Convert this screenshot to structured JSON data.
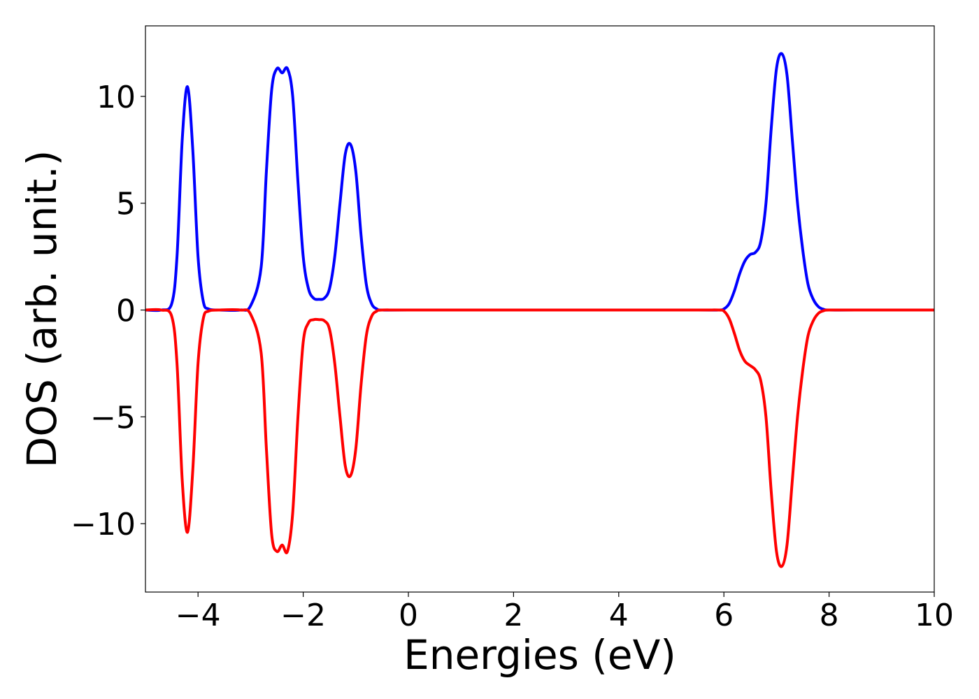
{
  "chart_data": {
    "type": "line",
    "xlabel": "Energies (eV)",
    "ylabel": "DOS (arb. unit.)",
    "xlim": [
      -5,
      10
    ],
    "ylim": [
      -13.2,
      13.3
    ],
    "xticks": [
      -4,
      -2,
      0,
      2,
      4,
      6,
      8,
      10
    ],
    "yticks": [
      -10,
      -5,
      0,
      5,
      10
    ],
    "xtick_labels": [
      "−4",
      "−2",
      "0",
      "2",
      "4",
      "6",
      "8",
      "10"
    ],
    "ytick_labels": [
      "−10",
      "−5",
      "0",
      "5",
      "10"
    ],
    "grid": false,
    "legend": false,
    "series": [
      {
        "color": "#0000ff",
        "x": [
          -5.0,
          -4.7,
          -4.5,
          -4.4,
          -4.3,
          -4.2,
          -4.1,
          -4.0,
          -3.9,
          -3.8,
          -3.6,
          -3.2,
          -3.0,
          -2.8,
          -2.7,
          -2.6,
          -2.5,
          -2.4,
          -2.3,
          -2.2,
          -2.1,
          -2.0,
          -1.9,
          -1.8,
          -1.7,
          -1.6,
          -1.5,
          -1.4,
          -1.3,
          -1.2,
          -1.1,
          -1.0,
          -0.9,
          -0.8,
          -0.7,
          -0.6,
          -0.5,
          0.0,
          2.0,
          4.0,
          5.5,
          5.9,
          6.0,
          6.1,
          6.2,
          6.3,
          6.4,
          6.5,
          6.6,
          6.7,
          6.8,
          6.9,
          7.0,
          7.1,
          7.2,
          7.3,
          7.4,
          7.5,
          7.6,
          7.7,
          7.8,
          7.9,
          8.0,
          8.5,
          10.0
        ],
        "y": [
          0.0,
          0.0,
          0.3,
          2.5,
          8.0,
          10.45,
          7.5,
          2.5,
          0.4,
          0.05,
          0.0,
          0.0,
          0.2,
          2.0,
          6.5,
          10.3,
          11.3,
          11.1,
          11.3,
          10.0,
          6.0,
          2.5,
          1.0,
          0.55,
          0.5,
          0.55,
          1.0,
          2.5,
          5.0,
          7.3,
          7.75,
          6.5,
          3.5,
          1.2,
          0.3,
          0.05,
          0.0,
          0.0,
          0.0,
          0.0,
          0.0,
          0.0,
          0.05,
          0.3,
          0.9,
          1.7,
          2.3,
          2.6,
          2.7,
          3.2,
          5.0,
          8.5,
          11.3,
          12.0,
          11.0,
          8.0,
          5.0,
          2.8,
          1.2,
          0.5,
          0.15,
          0.03,
          0.0,
          0.0,
          0.0
        ]
      },
      {
        "color": "#ff0000",
        "x": [
          -5.0,
          -4.7,
          -4.5,
          -4.4,
          -4.3,
          -4.2,
          -4.1,
          -4.0,
          -3.9,
          -3.8,
          -3.6,
          -3.2,
          -3.0,
          -2.8,
          -2.7,
          -2.6,
          -2.5,
          -2.4,
          -2.3,
          -2.2,
          -2.1,
          -2.0,
          -1.9,
          -1.8,
          -1.7,
          -1.6,
          -1.5,
          -1.4,
          -1.3,
          -1.2,
          -1.1,
          -1.0,
          -0.9,
          -0.8,
          -0.7,
          -0.6,
          -0.5,
          0.0,
          2.0,
          4.0,
          5.5,
          5.9,
          6.0,
          6.1,
          6.2,
          6.3,
          6.4,
          6.5,
          6.6,
          6.7,
          6.8,
          6.9,
          7.0,
          7.1,
          7.2,
          7.3,
          7.4,
          7.5,
          7.6,
          7.7,
          7.8,
          7.9,
          8.0,
          8.5,
          10.0
        ],
        "y": [
          0.0,
          0.0,
          -0.3,
          -2.5,
          -8.0,
          -10.4,
          -7.5,
          -2.5,
          -0.4,
          -0.05,
          0.0,
          0.0,
          -0.2,
          -2.0,
          -6.5,
          -10.5,
          -11.3,
          -11.0,
          -11.3,
          -9.5,
          -5.0,
          -1.5,
          -0.6,
          -0.45,
          -0.45,
          -0.5,
          -0.9,
          -2.5,
          -5.0,
          -7.3,
          -7.75,
          -6.5,
          -3.5,
          -1.2,
          -0.3,
          -0.05,
          0.0,
          0.0,
          0.0,
          0.0,
          0.0,
          0.0,
          -0.05,
          -0.4,
          -1.1,
          -1.9,
          -2.4,
          -2.6,
          -2.8,
          -3.3,
          -5.0,
          -8.5,
          -11.3,
          -12.0,
          -11.0,
          -8.0,
          -5.0,
          -2.8,
          -1.2,
          -0.5,
          -0.15,
          -0.03,
          0.0,
          0.0,
          0.0
        ]
      }
    ]
  }
}
